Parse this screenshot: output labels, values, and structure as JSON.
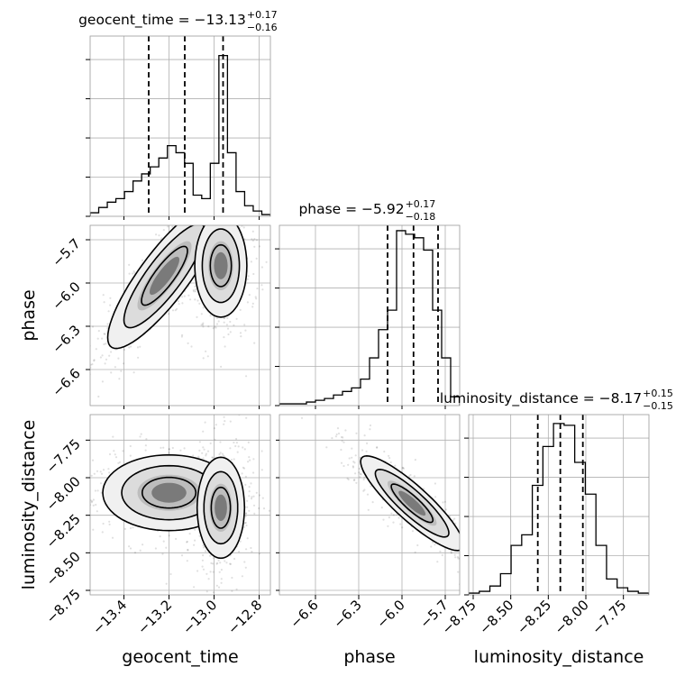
{
  "chart_data": {
    "type": "corner",
    "parameters": [
      {
        "key": "geocent_time",
        "label": "geocent_time",
        "range": [
          -13.55,
          -12.75
        ],
        "ticks": [
          -13.4,
          -13.2,
          -13.0,
          -12.8
        ],
        "tick_labels": [
          "−13.4",
          "−13.2",
          "−13.0",
          "−12.8"
        ],
        "title": "geocent_time = −13.13",
        "title_sup": "+0.17",
        "title_sub": "−0.16",
        "quantiles": [
          -13.29,
          -13.13,
          -12.96
        ],
        "hist": [
          0.02,
          0.05,
          0.08,
          0.1,
          0.14,
          0.2,
          0.24,
          0.28,
          0.33,
          0.4,
          0.36,
          0.3,
          0.12,
          0.1,
          0.3,
          0.91,
          0.36,
          0.14,
          0.06,
          0.03,
          0.01
        ]
      },
      {
        "key": "phase",
        "label": "phase",
        "range": [
          -6.85,
          -5.6
        ],
        "ticks": [
          -6.6,
          -6.3,
          -6.0,
          -5.7
        ],
        "tick_labels": [
          "−6.6",
          "−6.3",
          "−6.0",
          "−5.7"
        ],
        "title": "phase = −5.92",
        "title_sup": "+0.17",
        "title_sub": "−0.18",
        "quantiles": [
          -6.1,
          -5.92,
          -5.75
        ],
        "hist": [
          0.01,
          0.01,
          0.01,
          0.02,
          0.03,
          0.04,
          0.06,
          0.08,
          0.1,
          0.15,
          0.27,
          0.43,
          0.54,
          0.99,
          0.97,
          0.95,
          0.88,
          0.54,
          0.27,
          0.05
        ]
      },
      {
        "key": "luminosity_distance",
        "label": "luminosity_distance",
        "range": [
          -8.78,
          -7.58
        ],
        "ticks": [
          -8.75,
          -8.5,
          -8.25,
          -8.0,
          -7.75
        ],
        "tick_labels": [
          "−8.75",
          "−8.50",
          "−8.25",
          "−8.00",
          "−7.75"
        ],
        "title": "luminosity_distance = −8.17",
        "title_sup": "+0.15",
        "title_sub": "−0.15",
        "quantiles": [
          -8.32,
          -8.17,
          -8.02
        ],
        "hist": [
          0.01,
          0.02,
          0.05,
          0.12,
          0.28,
          0.34,
          0.62,
          0.84,
          0.97,
          0.96,
          0.75,
          0.57,
          0.28,
          0.09,
          0.04,
          0.02,
          0.01
        ]
      }
    ],
    "pairs": [
      {
        "x": "geocent_time",
        "y": "phase",
        "modes": [
          {
            "cx": -13.22,
            "cy": -5.95,
            "sx": 0.12,
            "sy": 0.24,
            "rho": 0.85,
            "levels": [
              0.95,
              0.6,
              0.3
            ]
          },
          {
            "cx": -12.97,
            "cy": -5.88,
            "sx": 0.055,
            "sy": 0.17,
            "rho": 0.0,
            "levels": [
              0.95,
              0.6,
              0.3
            ]
          }
        ]
      },
      {
        "x": "geocent_time",
        "y": "luminosity_distance",
        "modes": [
          {
            "cx": -13.2,
            "cy": -8.1,
            "sx": 0.14,
            "sy": 0.12,
            "rho": 0.0,
            "levels": [
              0.95,
              0.6,
              0.3
            ]
          },
          {
            "cx": -12.97,
            "cy": -8.2,
            "sx": 0.05,
            "sy": 0.16,
            "rho": 0.0,
            "levels": [
              0.95,
              0.6,
              0.3
            ]
          }
        ]
      },
      {
        "x": "phase",
        "y": "luminosity_distance",
        "modes": [
          {
            "cx": -5.93,
            "cy": -8.17,
            "sx": 0.17,
            "sy": 0.15,
            "rho": -0.88,
            "levels": [
              0.95,
              0.6,
              0.3
            ]
          }
        ]
      }
    ],
    "grid": true
  }
}
